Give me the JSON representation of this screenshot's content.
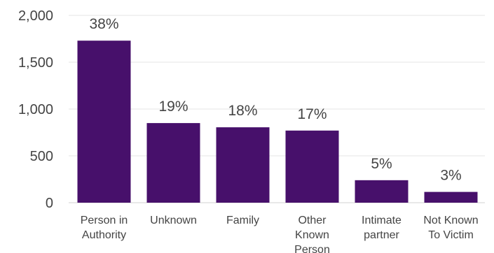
{
  "chart_data": {
    "type": "bar",
    "title": "",
    "xlabel": "",
    "ylabel": "",
    "ylim": [
      0,
      2000
    ],
    "yticks": [
      0,
      500,
      1000,
      1500,
      2000
    ],
    "ytick_labels": [
      "0",
      "500",
      "1,000",
      "1,500",
      "2,000"
    ],
    "grid": true,
    "bar_color": "#47106b",
    "categories": [
      [
        "Person in",
        "Authority"
      ],
      [
        "Unknown"
      ],
      [
        "Family"
      ],
      [
        "Other",
        "Known",
        "Person"
      ],
      [
        "Intimate",
        "partner"
      ],
      [
        "Not Known",
        "To Victim"
      ]
    ],
    "values": [
      1730,
      850,
      805,
      770,
      240,
      115
    ],
    "data_labels": [
      "38%",
      "19%",
      "18%",
      "17%",
      "5%",
      "3%"
    ]
  }
}
